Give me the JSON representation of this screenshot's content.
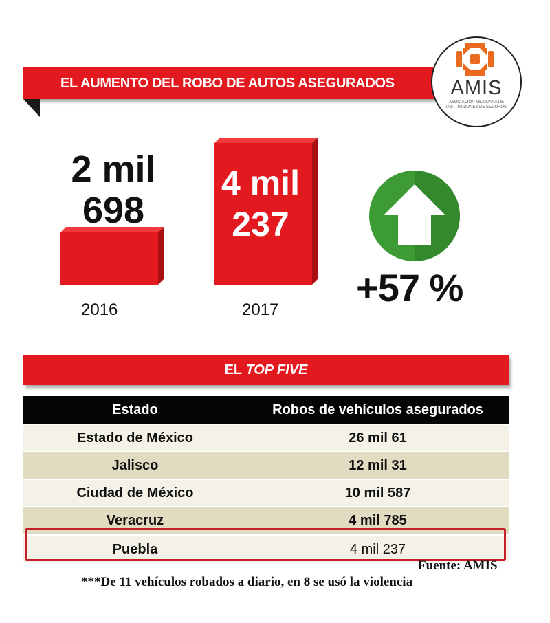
{
  "header": {
    "title": "EL AUMENTO DEL ROBO DE AUTOS ASEGURADOS"
  },
  "logo": {
    "name": "AMIS",
    "subtitle": "ASOCIACIÓN MEXICANA DE INSTITUCIONES DE SEGUROS"
  },
  "colors": {
    "accent_red": "#e21a1f",
    "arrow_green": "#3c9b34",
    "row_light": "#f4f2e6",
    "row_dark": "#e1dcc1"
  },
  "chart_data": [
    {
      "type": "bar",
      "categories": [
        "2016",
        "2017"
      ],
      "values": [
        2698,
        4237
      ],
      "value_labels": [
        [
          "2 mil",
          "698"
        ],
        [
          "4 mil",
          "237"
        ]
      ],
      "change_label": "+57 %",
      "change_icon": "up-arrow-icon"
    },
    {
      "type": "table",
      "section_title_prefix": "EL ",
      "section_title_emphasis": "TOP FIVE",
      "columns": [
        "Estado",
        "Robos de vehículos asegurados"
      ],
      "rows": [
        [
          "Estado de México",
          "26 mil 61"
        ],
        [
          "Jalisco",
          "12 mil 31"
        ],
        [
          "Ciudad de México",
          "10 mil 587"
        ],
        [
          "Veracruz",
          "4 mil 785"
        ],
        [
          "Puebla",
          "4 mil 237"
        ]
      ],
      "highlighted_row": "Puebla"
    }
  ],
  "footer": {
    "source": "Fuente: AMIS",
    "note": "***De 11 vehículos robados a diario, en 8 se usó la violencia"
  }
}
